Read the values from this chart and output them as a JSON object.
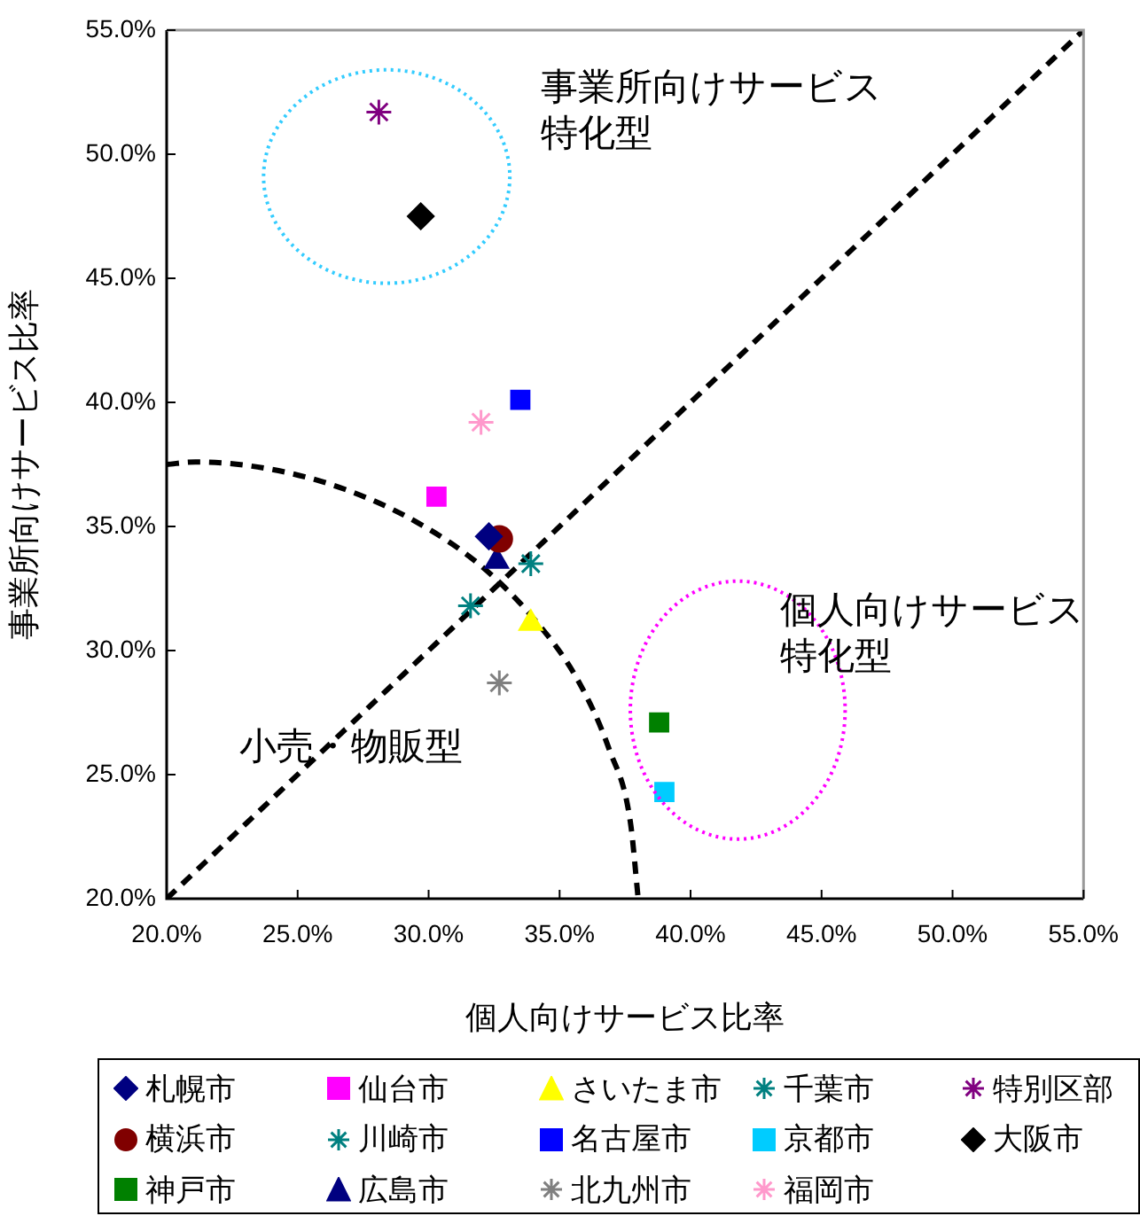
{
  "chart_data": {
    "type": "scatter",
    "xlabel": "個人向けサービス比率",
    "ylabel": "事業所向けサービス比率",
    "xlim": [
      20,
      55
    ],
    "ylim": [
      20,
      55
    ],
    "xticks": [
      {
        "value": 20,
        "label": "20.0%"
      },
      {
        "value": 25,
        "label": "25.0%"
      },
      {
        "value": 30,
        "label": "30.0%"
      },
      {
        "value": 35,
        "label": "35.0%"
      },
      {
        "value": 40,
        "label": "40.0%"
      },
      {
        "value": 45,
        "label": "45.0%"
      },
      {
        "value": 50,
        "label": "50.0%"
      },
      {
        "value": 55,
        "label": "55.0%"
      }
    ],
    "yticks": [
      {
        "value": 20,
        "label": "20.0%"
      },
      {
        "value": 25,
        "label": "25.0%"
      },
      {
        "value": 30,
        "label": "30.0%"
      },
      {
        "value": 35,
        "label": "35.0%"
      },
      {
        "value": 40,
        "label": "40.0%"
      },
      {
        "value": 45,
        "label": "45.0%"
      },
      {
        "value": 50,
        "label": "50.0%"
      },
      {
        "value": 55,
        "label": "55.0%"
      }
    ],
    "grid": false,
    "legend": "bottom",
    "annotations": [
      "事業所向けサービス特化型",
      "個人向けサービス特化型",
      "小売・物販型"
    ],
    "series": [
      {
        "name": "札幌市",
        "color": "#000080",
        "marker": "diamond",
        "x": [
          32.3
        ],
        "values": [
          34.6
        ]
      },
      {
        "name": "仙台市",
        "color": "#ff00ff",
        "marker": "square",
        "x": [
          30.3
        ],
        "values": [
          36.2
        ]
      },
      {
        "name": "さいたま市",
        "color": "#ffff00",
        "marker": "triangle",
        "x": [
          33.9
        ],
        "values": [
          31.1
        ]
      },
      {
        "name": "千葉市",
        "color": "#008080",
        "marker": "cross",
        "x": [
          31.6
        ],
        "values": [
          31.8
        ]
      },
      {
        "name": "特別区部",
        "color": "#800080",
        "marker": "cross",
        "x": [
          28.1
        ],
        "values": [
          51.7
        ]
      },
      {
        "name": "横浜市",
        "color": "#800000",
        "marker": "circle",
        "x": [
          32.7
        ],
        "values": [
          34.5
        ]
      },
      {
        "name": "川崎市",
        "color": "#008080",
        "marker": "cross",
        "x": [
          33.9
        ],
        "values": [
          33.5
        ]
      },
      {
        "name": "名古屋市",
        "color": "#0000ff",
        "marker": "square",
        "x": [
          33.5
        ],
        "values": [
          40.1
        ]
      },
      {
        "name": "京都市",
        "color": "#00ccff",
        "marker": "square",
        "x": [
          39.0
        ],
        "values": [
          24.3
        ]
      },
      {
        "name": "大阪市",
        "color": "#000000",
        "marker": "diamond",
        "x": [
          29.7
        ],
        "values": [
          47.5
        ]
      },
      {
        "name": "神戸市",
        "color": "#008000",
        "marker": "square",
        "x": [
          38.8
        ],
        "values": [
          27.1
        ]
      },
      {
        "name": "広島市",
        "color": "#000080",
        "marker": "triangle",
        "x": [
          32.6
        ],
        "values": [
          33.6
        ]
      },
      {
        "name": "北九州市",
        "color": "#808080",
        "marker": "cross",
        "x": [
          32.7
        ],
        "values": [
          28.7
        ]
      },
      {
        "name": "福岡市",
        "color": "#ff99cc",
        "marker": "cross",
        "x": [
          32.0
        ],
        "values": [
          39.2
        ]
      },
      {
        "type": "line",
        "color": "#000000",
        "line_style": "dashed",
        "marker": "none",
        "x": [
          20,
          55
        ],
        "values": [
          20,
          55
        ]
      },
      {
        "type": "line",
        "color": "#000000",
        "line_style": "dashed",
        "marker": "none",
        "x": [
          20,
          21.1,
          24,
          26.8,
          29.5,
          31.9,
          34,
          35.7,
          36.9,
          37.7,
          38
        ],
        "values": [
          37.5,
          37.6,
          37.3,
          36.5,
          35.2,
          33.5,
          31.3,
          28.8,
          26,
          23.1,
          20
        ]
      }
    ]
  }
}
